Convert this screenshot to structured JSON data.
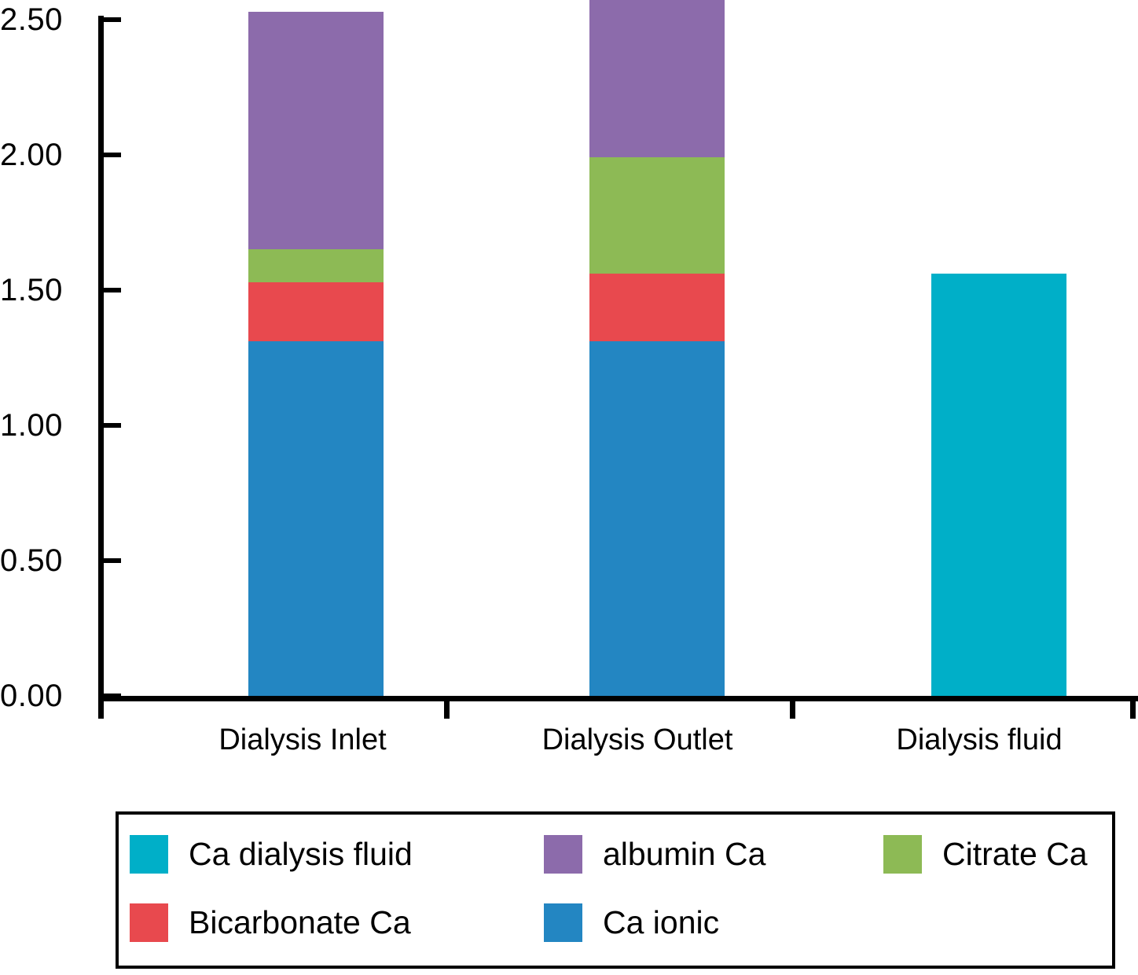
{
  "chart_data": {
    "type": "bar",
    "subtype": "stacked",
    "title": "",
    "xlabel": "",
    "ylabel": "",
    "ylim": [
      0,
      2.5
    ],
    "grid": false,
    "legend_position": "bottom-boxed",
    "categories": [
      "Dialysis Inlet",
      "Dialysis Outlet",
      "Dialysis fluid"
    ],
    "yticks": [
      0,
      0.5,
      1.0,
      1.5,
      2.0,
      2.5
    ],
    "ytick_labels": [
      "0.00",
      "0.50",
      "1.00",
      "1.50",
      "2.00",
      "2.50"
    ],
    "series": [
      {
        "name": "Ca ionic",
        "color": "#2386c2",
        "values": [
          1.31,
          1.31,
          0
        ]
      },
      {
        "name": "Bicarbonate Ca",
        "color": "#e8494e",
        "values": [
          0.22,
          0.25,
          0
        ]
      },
      {
        "name": "Citrate Ca",
        "color": "#8dba55",
        "values": [
          0.12,
          0.43,
          0
        ]
      },
      {
        "name": "albumin Ca",
        "color": "#8c6bab",
        "values": [
          0.88,
          0.6,
          0
        ]
      },
      {
        "name": "Ca dialysis fluid",
        "color": "#00afc8",
        "values": [
          0,
          0,
          1.56
        ]
      }
    ],
    "legend_entries": [
      {
        "label": "Ca dialysis fluid",
        "color": "#00afc8"
      },
      {
        "label": "albumin Ca",
        "color": "#8c6bab"
      },
      {
        "label": "Citrate Ca",
        "color": "#8dba55"
      },
      {
        "label": "Bicarbonate Ca",
        "color": "#e8494e"
      },
      {
        "label": "Ca ionic",
        "color": "#2386c2"
      }
    ]
  }
}
